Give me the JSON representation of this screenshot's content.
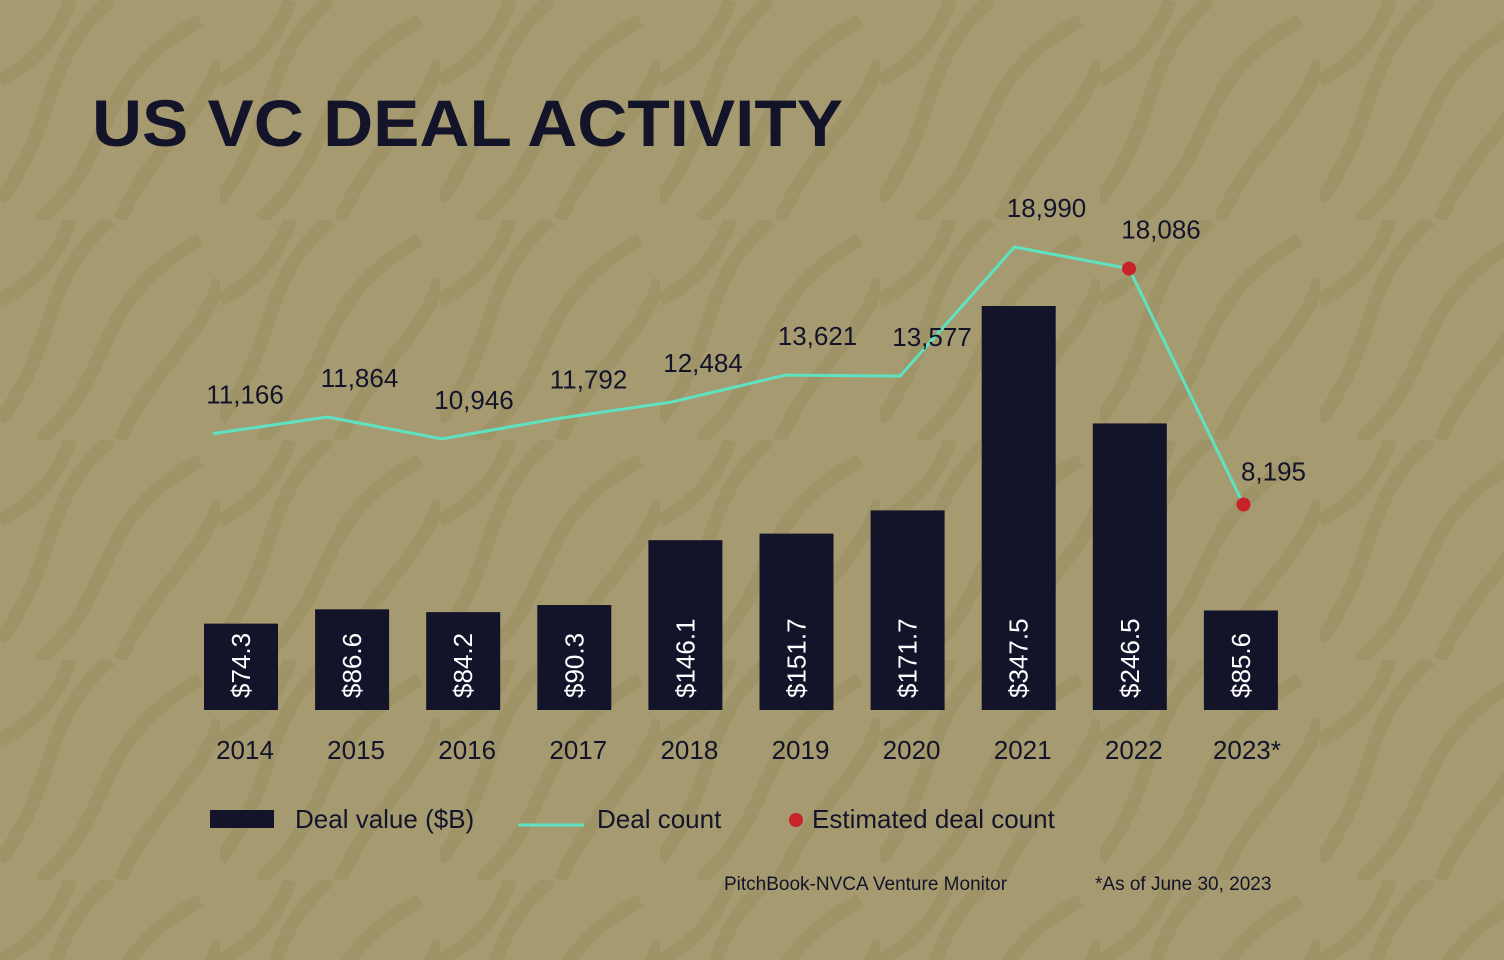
{
  "chart_data": {
    "type": "bar-line",
    "title": "US VC DEAL ACTIVITY",
    "categories": [
      "2014",
      "2015",
      "2016",
      "2017",
      "2018",
      "2019",
      "2020",
      "2021",
      "2022",
      "2023*"
    ],
    "series": [
      {
        "name": "Deal value ($B)",
        "color": "#13142a",
        "values": [
          74.3,
          86.6,
          84.2,
          90.3,
          146.1,
          151.7,
          171.7,
          347.5,
          246.5,
          85.6
        ],
        "value_labels": [
          "$74.3",
          "$86.6",
          "$84.2",
          "$90.3",
          "$146.1",
          "$151.7",
          "$171.7",
          "$347.5",
          "$246.5",
          "$85.6"
        ]
      },
      {
        "name": "Deal count",
        "color": "#5ee3c2",
        "axis": "y2",
        "values": [
          11166,
          11864,
          10946,
          11792,
          12484,
          13621,
          13577,
          18990,
          18086,
          8195
        ],
        "value_labels": [
          "11,166",
          "11,864",
          "10,946",
          "11,792",
          "12,484",
          "13,621",
          "13,577",
          "18,990",
          "18,086",
          "8,195"
        ]
      },
      {
        "name": "Estimated deal count",
        "color": "#c8232b",
        "axis": "y2",
        "values": [
          null,
          null,
          null,
          null,
          null,
          null,
          null,
          null,
          18086,
          8195
        ]
      }
    ],
    "source": "PitchBook-NVCA Venture Monitor",
    "note": "*As of June 30, 2023"
  }
}
